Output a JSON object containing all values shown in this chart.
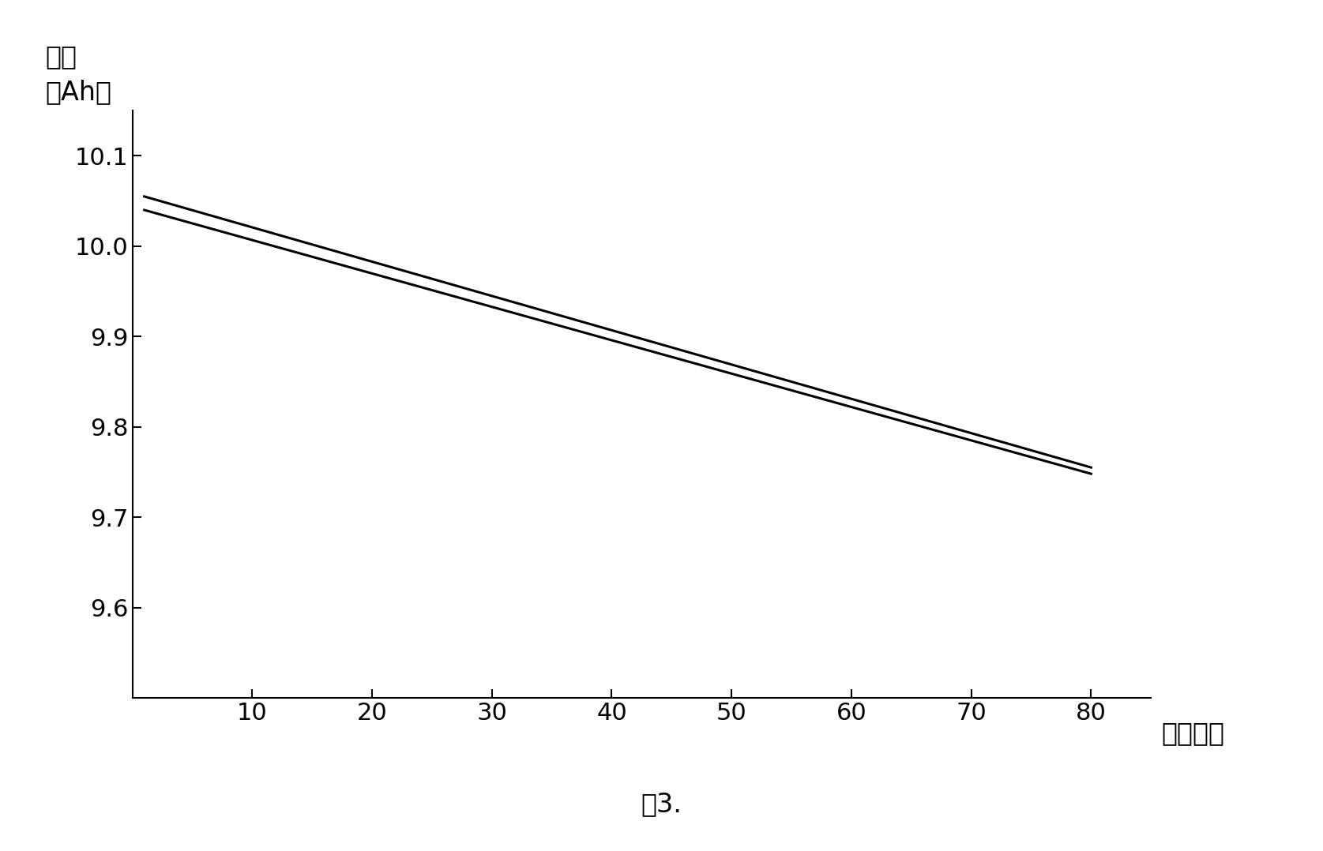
{
  "line1_x": [
    1,
    80
  ],
  "line1_y": [
    10.055,
    9.755
  ],
  "line2_x": [
    1,
    80
  ],
  "line2_y": [
    10.04,
    9.748
  ],
  "line_color": "#000000",
  "line_width": 2.2,
  "xlim": [
    0,
    85
  ],
  "ylim": [
    9.5,
    10.15
  ],
  "yticks": [
    9.6,
    9.7,
    9.8,
    9.9,
    10.0,
    10.1
  ],
  "xticks": [
    10,
    20,
    30,
    40,
    50,
    60,
    70,
    80
  ],
  "xlabel": "循环次数",
  "ylabel_line1": "容量",
  "ylabel_line2": "（Ah）",
  "caption": "图3.",
  "background_color": "#ffffff",
  "tick_fontsize": 22,
  "label_fontsize": 24,
  "caption_fontsize": 24
}
